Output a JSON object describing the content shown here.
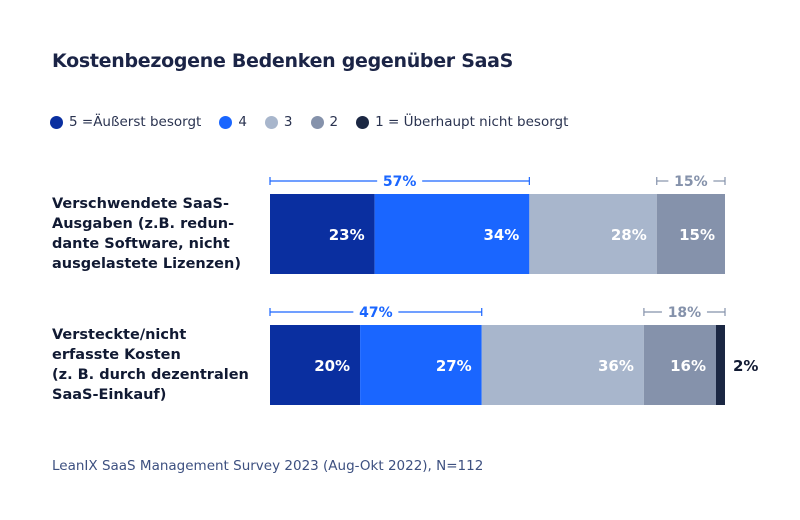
{
  "chart_data": {
    "type": "bar",
    "orientation": "horizontal",
    "stacked": true,
    "title": "Kostenbezogene Bedenken gegenüber SaaS",
    "categories": [
      "Verschwendete SaaS-Ausgaben (z.B. redun-dante Software, nicht ausgelastete Lizenzen)",
      "Versteckte/nicht erfasste Kosten (z. B. durch dezentralen SaaS-Einkauf)"
    ],
    "category_lines": [
      [
        "Verschwendete SaaS-",
        "Ausgaben (z.B. redun-",
        "dante Software, nicht",
        "ausgelastete Lizenzen)"
      ],
      [
        "Versteckte/nicht",
        "erfasste Kosten",
        "(z. B. durch dezentralen",
        "SaaS-Einkauf)"
      ]
    ],
    "series": [
      {
        "name": "5 =Äußerst besorgt",
        "color": "#0a2fa0",
        "values": [
          23,
          20
        ],
        "labels": [
          "23%",
          "20%"
        ]
      },
      {
        "name": "4",
        "color": "#1a66ff",
        "values": [
          34,
          27
        ],
        "labels": [
          "34%",
          "27%"
        ]
      },
      {
        "name": "3",
        "color": "#a8b6cc",
        "values": [
          28,
          36
        ],
        "labels": [
          "28%",
          "36%"
        ]
      },
      {
        "name": "2",
        "color": "#8592ab",
        "values": [
          15,
          16
        ],
        "labels": [
          "15%",
          "16%"
        ]
      },
      {
        "name": "1 = Überhaupt nicht besorgt",
        "color": "#1b2743",
        "values": [
          0,
          2
        ],
        "labels": [
          "",
          "2%"
        ]
      }
    ],
    "brackets": [
      {
        "top": "57%",
        "bottom": "15%"
      },
      {
        "top": "47%",
        "bottom": "18%"
      }
    ],
    "bracket_colors": {
      "top": "#1a66ff",
      "bottom": "#8592ab"
    },
    "legend": "top-left",
    "grid": false
  },
  "source": "LeanIX SaaS Management Survey 2023 (Aug-Okt 2022), N=112"
}
